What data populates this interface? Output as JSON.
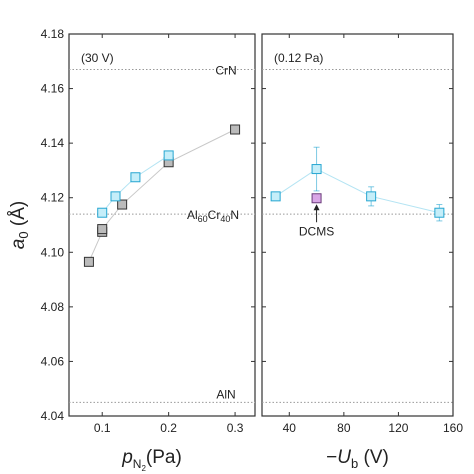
{
  "chart_data": [
    {
      "type": "scatter",
      "panel_note": "(30 V)",
      "y_axis": {
        "label_main": "a",
        "label_sub": "0",
        "label_unit": " (Å)",
        "ylim": [
          4.04,
          4.18
        ],
        "ticks": [
          "4.04",
          "4.06",
          "4.08",
          "4.10",
          "4.12",
          "4.14",
          "4.16",
          "4.18"
        ]
      },
      "x_axis": {
        "label_main": "p",
        "label_sub1": "N",
        "label_sub2": "2",
        "label_unit": "(Pa)",
        "xlim": [
          0.05,
          0.33
        ],
        "ticks": [
          "0.1",
          "0.2",
          "0.3"
        ]
      },
      "reference_lines": [
        {
          "y": 4.167,
          "label": "CrN"
        },
        {
          "y": 4.114,
          "label_parts": [
            "Al",
            "60",
            "Cr",
            "40",
            "N"
          ]
        },
        {
          "y": 4.045,
          "label": "AlN"
        }
      ],
      "series": [
        {
          "marker_fill": "#bbbbbb",
          "marker_stroke": "#333333",
          "line_color": "#c8c8c8",
          "points": [
            {
              "x": 0.08,
              "y": 4.0965
            },
            {
              "x": 0.1,
              "y": 4.1075
            },
            {
              "x": 0.1,
              "y": 4.1085
            },
            {
              "x": 0.13,
              "y": 4.1175
            },
            {
              "x": 0.2,
              "y": 4.133
            },
            {
              "x": 0.3,
              "y": 4.145
            }
          ]
        },
        {
          "marker_fill": "#c5eef9",
          "marker_stroke": "#26a6d1",
          "line_color": "#b4e4f3",
          "points": [
            {
              "x": 0.1,
              "y": 4.1145
            },
            {
              "x": 0.12,
              "y": 4.1205
            },
            {
              "x": 0.15,
              "y": 4.1275
            },
            {
              "x": 0.2,
              "y": 4.1355
            }
          ]
        }
      ]
    },
    {
      "type": "scatter",
      "panel_note": "(0.12 Pa)",
      "x_axis": {
        "label_prefix": "−",
        "label_main": "U",
        "label_sub": "b",
        "label_unit": " (V)",
        "xlim": [
          20,
          160
        ],
        "ticks": [
          "40",
          "80",
          "120",
          "160"
        ]
      },
      "series": [
        {
          "marker_fill": "#c5eef9",
          "marker_stroke": "#26a6d1",
          "line_color": "#b4e4f3",
          "points": [
            {
              "x": 30,
              "y": 4.1205,
              "err": 0.001
            },
            {
              "x": 60,
              "y": 4.1305,
              "err": 0.008
            },
            {
              "x": 100,
              "y": 4.1205,
              "err": 0.0035
            },
            {
              "x": 150,
              "y": 4.1145,
              "err": 0.003
            }
          ]
        },
        {
          "marker_fill": "#d9a6e6",
          "marker_stroke": "#6a3d7a",
          "points": [
            {
              "x": 60,
              "y": 4.1198
            }
          ]
        }
      ],
      "annotation": {
        "text": "DCMS",
        "x": 60,
        "y": 4.1198
      }
    }
  ]
}
